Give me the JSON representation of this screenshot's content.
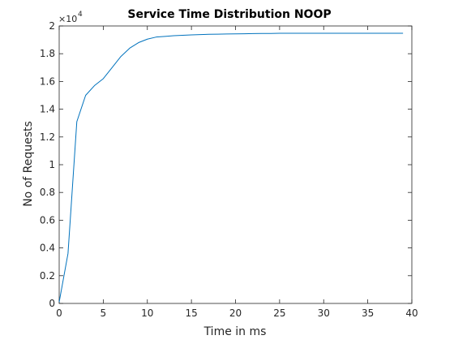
{
  "chart_data": {
    "type": "line",
    "title": "Service Time Distribution NOOP",
    "xlabel": "Time in ms",
    "ylabel": "No of Requests",
    "xlim": [
      0,
      40
    ],
    "ylim": [
      0,
      20000
    ],
    "x_ticks": [
      0,
      5,
      10,
      15,
      20,
      25,
      30,
      35,
      40
    ],
    "y_ticks": [
      0,
      2000,
      4000,
      6000,
      8000,
      10000,
      12000,
      14000,
      16000,
      18000,
      20000
    ],
    "x_tick_labels": [
      "0",
      "5",
      "10",
      "15",
      "20",
      "25",
      "30",
      "35",
      "40"
    ],
    "y_tick_labels": [
      "0",
      "0.2",
      "0.4",
      "0.6",
      "0.8",
      "1",
      "1.2",
      "1.4",
      "1.6",
      "1.8",
      "2"
    ],
    "y_exponent_base": "×10",
    "y_exponent_power": "4",
    "grid": false,
    "series": [
      {
        "color": "#0072BD",
        "x": [
          0,
          1,
          2,
          3,
          4,
          5,
          6,
          7,
          8,
          9,
          10,
          11,
          12,
          13,
          14,
          15,
          16,
          17,
          18,
          19,
          20,
          21,
          22,
          23,
          24,
          25,
          26,
          27,
          28,
          29,
          30,
          31,
          32,
          33,
          34,
          35,
          36,
          37,
          38,
          39
        ],
        "y": [
          100,
          3600,
          13100,
          15000,
          15700,
          16200,
          17000,
          17800,
          18400,
          18800,
          19050,
          19200,
          19250,
          19300,
          19330,
          19360,
          19380,
          19400,
          19410,
          19420,
          19430,
          19440,
          19450,
          19460,
          19460,
          19470,
          19470,
          19470,
          19470,
          19470,
          19470,
          19470,
          19470,
          19470,
          19470,
          19470,
          19470,
          19470,
          19470,
          19470
        ]
      }
    ]
  }
}
